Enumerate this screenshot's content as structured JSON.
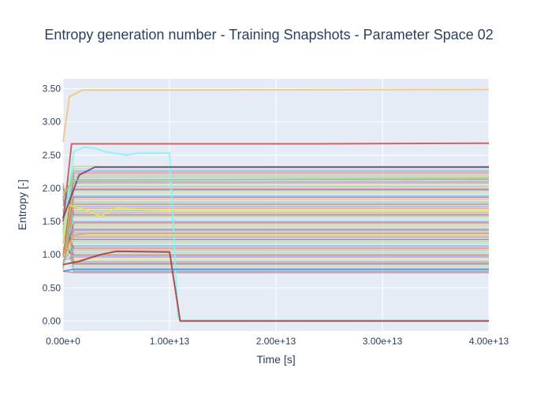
{
  "chart_data": {
    "type": "line",
    "title": "Entropy generation number - Training Snapshots - Parameter Space 02",
    "xlabel": "Time [s]",
    "ylabel": "Entropy [-]",
    "xlim": [
      0,
      40000000000000
    ],
    "ylim": [
      -0.15,
      3.65
    ],
    "xticks": [
      0,
      10000000000000,
      20000000000000,
      30000000000000,
      40000000000000
    ],
    "xtick_labels": [
      "0.00e+0",
      "1.00e+13",
      "2.00e+13",
      "3.00e+13",
      "4.00e+13"
    ],
    "yticks": [
      0,
      0.5,
      1,
      1.5,
      2,
      2.5,
      3,
      3.5
    ],
    "ytick_labels": [
      "0.00",
      "0.50",
      "1.00",
      "1.50",
      "2.00",
      "2.50",
      "3.00",
      "3.50"
    ],
    "legend": "none",
    "grid": true,
    "background": "#e5ecf6",
    "highlighted_series": [
      {
        "color": "#f6c372",
        "x": [
          0,
          600000000000,
          1800000000000,
          40000000000000
        ],
        "y": [
          2.7,
          3.38,
          3.48,
          3.49
        ]
      },
      {
        "color": "#c94c4c",
        "x": [
          0,
          800000000000,
          24000000000000,
          40000000000000
        ],
        "y": [
          1.5,
          2.67,
          2.67,
          2.68
        ]
      },
      {
        "color": "#7ff7f0",
        "x": [
          0,
          1000000000000,
          2000000000000,
          3000000000000,
          4000000000000,
          6000000000000,
          7000000000000,
          10000000000000,
          10800000000000,
          11000000000000,
          40000000000000
        ],
        "y": [
          1.3,
          2.55,
          2.62,
          2.6,
          2.55,
          2.5,
          2.53,
          2.53,
          0.05,
          0.01,
          0.01
        ]
      },
      {
        "color": "#f5e050",
        "x": [
          0,
          500000000000,
          2000000000000,
          3500000000000,
          5000000000000,
          10000000000000,
          40000000000000
        ],
        "y": [
          1.2,
          1.75,
          1.68,
          1.58,
          1.7,
          1.66,
          1.66
        ]
      },
      {
        "color": "#b03030",
        "x": [
          0,
          1500000000000,
          3500000000000,
          5000000000000,
          10000000000000,
          11000000000000,
          40000000000000
        ],
        "y": [
          0.85,
          0.9,
          1.0,
          1.05,
          1.04,
          0.0,
          0.0
        ]
      },
      {
        "color": "#4f8bd8",
        "x": [
          0,
          1000000000000,
          40000000000000
        ],
        "y": [
          0.75,
          0.78,
          0.78
        ]
      },
      {
        "color": "#7a3b8c",
        "x": [
          0,
          1500000000000,
          3000000000000,
          40000000000000
        ],
        "y": [
          1.55,
          2.2,
          2.32,
          2.32
        ]
      },
      {
        "color": "#9bd17a",
        "x": [
          0,
          1000000000000,
          40000000000000
        ],
        "y": [
          1.9,
          2.12,
          2.15
        ]
      },
      {
        "color": "#e0a060",
        "x": [
          0,
          1000000000000,
          2500000000000,
          40000000000000
        ],
        "y": [
          1.0,
          1.3,
          1.32,
          1.32
        ]
      }
    ],
    "band_series": {
      "y_values": [
        0.73,
        0.75,
        0.78,
        0.8,
        0.83,
        0.86,
        0.88,
        0.9,
        0.93,
        0.96,
        0.98,
        1.0,
        1.03,
        1.06,
        1.08,
        1.1,
        1.13,
        1.16,
        1.18,
        1.2,
        1.23,
        1.26,
        1.28,
        1.3,
        1.33,
        1.36,
        1.38,
        1.4,
        1.43,
        1.46,
        1.48,
        1.5,
        1.53,
        1.56,
        1.58,
        1.6,
        1.63,
        1.66,
        1.68,
        1.7,
        1.73,
        1.76,
        1.78,
        1.8,
        1.83,
        1.86,
        1.88,
        1.9,
        1.93,
        1.96,
        1.98,
        2.0,
        2.03,
        2.06,
        2.08,
        2.1,
        2.13,
        2.16,
        2.18,
        2.2,
        2.23,
        2.26,
        2.28,
        2.3,
        2.33
      ],
      "start_y_low": 0.75,
      "start_y_high": 2.1,
      "settle_x": 1000000000000,
      "colors": [
        "#c94c4c",
        "#4f8bd8",
        "#7ff7f0",
        "#f6c372",
        "#9bd17a",
        "#7a3b8c",
        "#e07a5f",
        "#5bc0a8",
        "#f5e050",
        "#d36fa6",
        "#6a8fd1",
        "#b5651d",
        "#88c4f0",
        "#a0d468",
        "#ff9f80"
      ]
    }
  }
}
